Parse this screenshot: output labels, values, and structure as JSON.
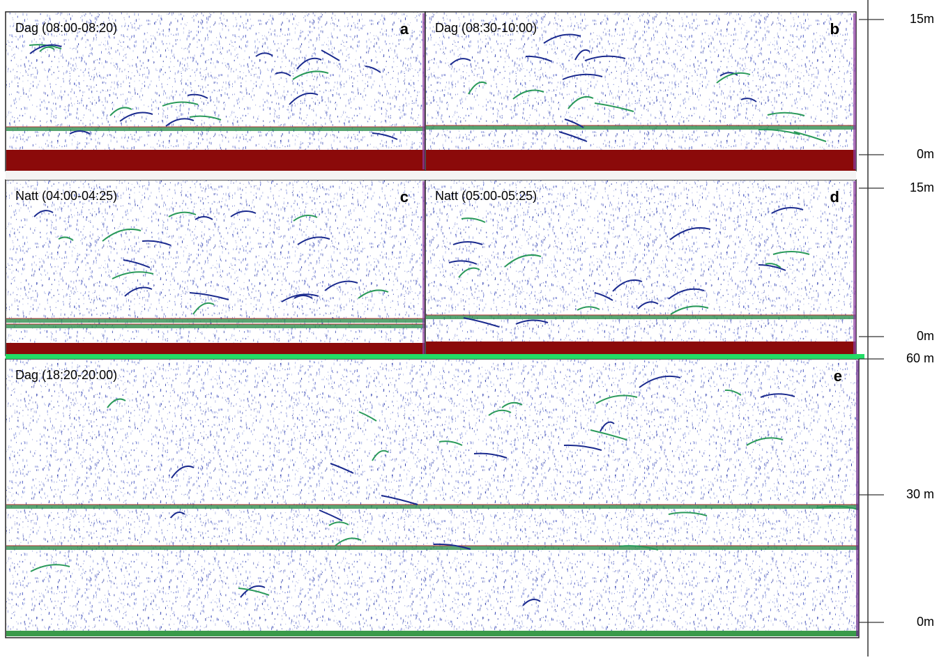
{
  "panels": [
    {
      "label": "Dag (08:00-08:20)",
      "letter": "a"
    },
    {
      "label": "Dag (08:30-10:00)",
      "letter": "b"
    },
    {
      "label": "Natt (04:00-04:25)",
      "letter": "c"
    },
    {
      "label": "Natt (05:00-05:25)",
      "letter": "d"
    },
    {
      "label": "Dag (18:20-20:00)",
      "letter": "e"
    }
  ],
  "depth_labels": [
    "15m",
    "0m",
    "15m",
    "0m",
    "60 m",
    "30 m",
    "0m"
  ]
}
